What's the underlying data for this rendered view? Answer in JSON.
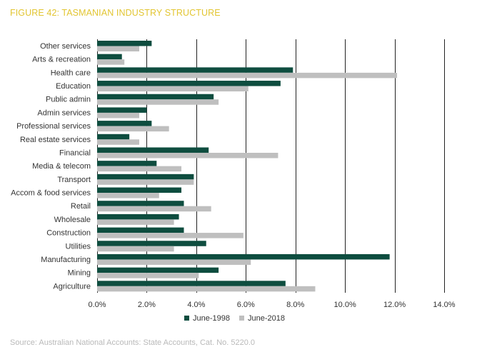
{
  "figure_title": "FIGURE 42: TASMANIAN INDUSTRY STRUCTURE",
  "source": "Source: Australian National Accounts: State Accounts, Cat. No. 5220.0",
  "colors": {
    "series_1998": "#0e4d3f",
    "series_2018": "#bfbfbf",
    "title": "#e2c531",
    "grid": "#222222"
  },
  "chart_data": {
    "type": "bar",
    "orientation": "horizontal",
    "title": "FIGURE 42: TASMANIAN INDUSTRY STRUCTURE",
    "categories": [
      "Other services",
      "Arts & recreation",
      "Health care",
      "Education",
      "Public admin",
      "Admin services",
      "Professional services",
      "Real estate services",
      "Financial",
      "Media & telecom",
      "Transport",
      "Accom & food services",
      "Retail",
      "Wholesale",
      "Construction",
      "Utilities",
      "Manufacturing",
      "Mining",
      "Agriculture"
    ],
    "series": [
      {
        "name": "June-1998",
        "values": [
          2.2,
          1.0,
          7.9,
          7.4,
          4.7,
          2.0,
          2.2,
          1.3,
          4.5,
          2.4,
          3.9,
          3.4,
          3.5,
          3.3,
          3.5,
          4.4,
          11.8,
          4.9,
          7.6
        ]
      },
      {
        "name": "June-2018",
        "values": [
          1.7,
          1.1,
          12.1,
          6.1,
          4.9,
          1.7,
          2.9,
          1.7,
          7.3,
          3.4,
          3.9,
          2.5,
          4.6,
          3.1,
          5.9,
          3.1,
          6.2,
          4.1,
          8.8
        ]
      }
    ],
    "x_ticks": [
      "0.0%",
      "2.0%",
      "4.0%",
      "6.0%",
      "8.0%",
      "10.0%",
      "12.0%",
      "14.0%"
    ],
    "xlim": [
      0,
      14
    ],
    "xlabel": "",
    "ylabel": "",
    "legend_position": "bottom",
    "grid": "vertical"
  }
}
